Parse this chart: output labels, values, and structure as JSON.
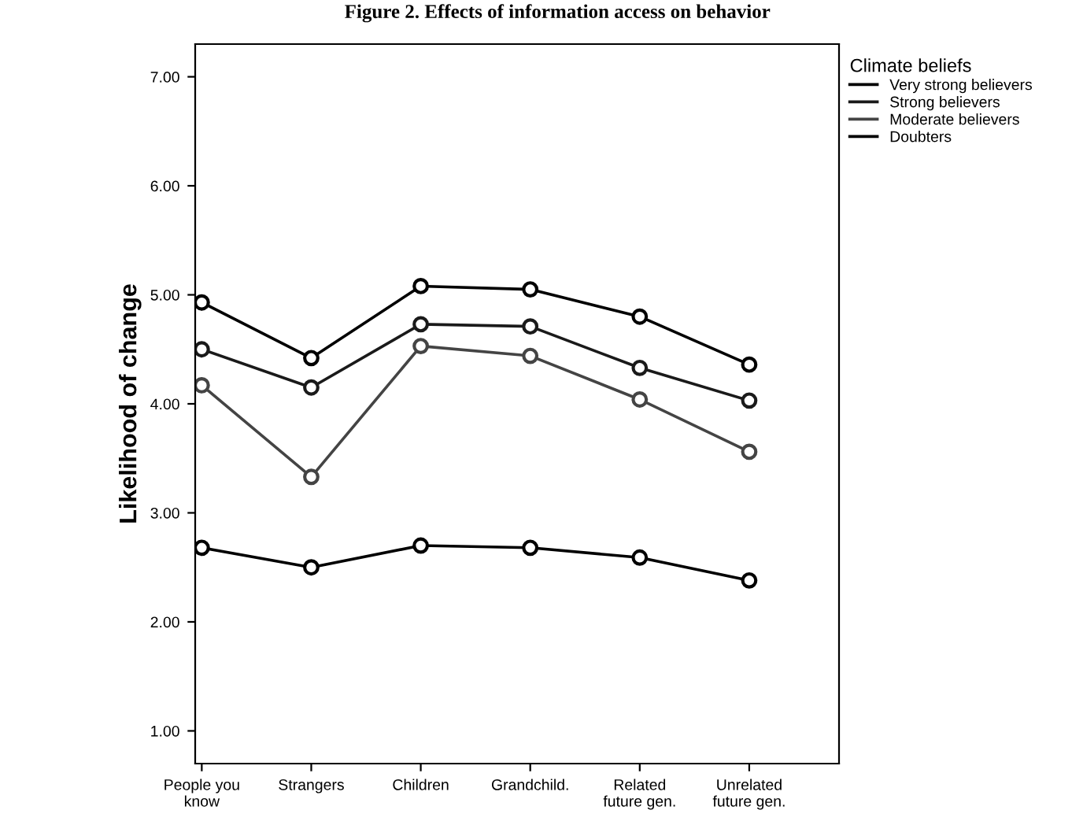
{
  "chart_data": {
    "type": "line",
    "title": "Figure 2. Effects of information access on behavior",
    "ylabel": "Likelihood of change",
    "legend_title": "Climate beliefs",
    "categories": [
      "People you\nknow",
      "Strangers",
      "Children",
      "Grandchild.",
      "Related\nfuture gen.",
      "Unrelated\nfuture gen."
    ],
    "series": [
      {
        "name": "Very strong believers",
        "color": "#000000",
        "values": [
          4.93,
          4.42,
          5.08,
          5.05,
          4.8,
          4.36
        ]
      },
      {
        "name": "Strong believers",
        "color": "#1a1a1a",
        "values": [
          4.5,
          4.15,
          4.73,
          4.71,
          4.33,
          4.03
        ]
      },
      {
        "name": "Moderate believers",
        "color": "#444444",
        "values": [
          4.17,
          3.33,
          4.53,
          4.44,
          4.04,
          3.56
        ]
      },
      {
        "name": "Doubters",
        "color": "#000000",
        "values": [
          2.68,
          2.5,
          2.7,
          2.68,
          2.59,
          2.38
        ]
      }
    ],
    "ylim": [
      0.7,
      7.3
    ],
    "yticks": [
      {
        "value": 1,
        "label": "1.00"
      },
      {
        "value": 2,
        "label": "2.00"
      },
      {
        "value": 3,
        "label": "3.00"
      },
      {
        "value": 4,
        "label": "4.00"
      },
      {
        "value": 5,
        "label": "5.00"
      },
      {
        "value": 6,
        "label": "6.00"
      },
      {
        "value": 7,
        "label": "7.00"
      }
    ],
    "marker": "circle",
    "line_style": "solid",
    "legend": "top right",
    "grid": false
  }
}
